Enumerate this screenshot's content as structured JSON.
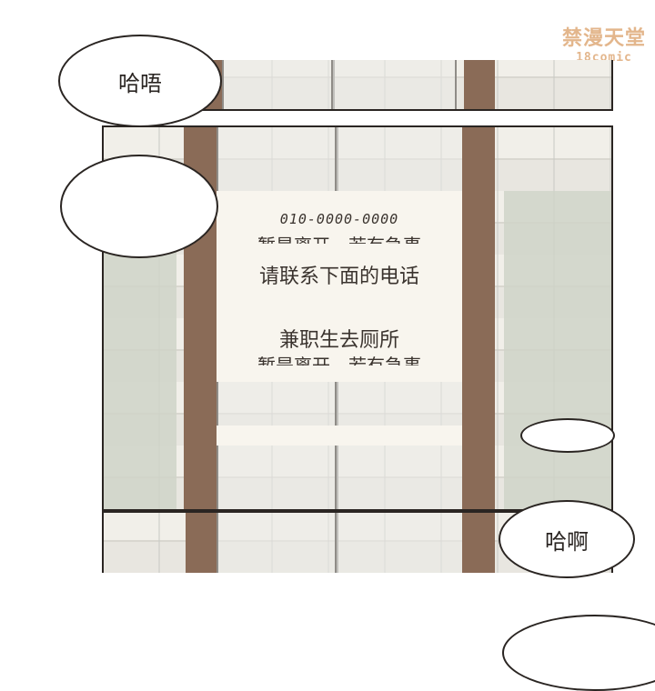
{
  "watermark": {
    "text_cn": "禁漫天堂",
    "text_en": "18comic"
  },
  "bubbles": {
    "top_left": "哈唔",
    "bottom_right": "哈啊"
  },
  "notice": {
    "phone": "010-0000-0000",
    "line_1_partial": "暂是离开，若有急事",
    "line_2": "请联系下面的电话",
    "line_3": "兼职生去厕所",
    "line_4_partial": "暂是离开，若有急事"
  },
  "colors": {
    "frame": "#8a6b57",
    "ink": "#2a2522",
    "watermark": "#e3b68c"
  }
}
